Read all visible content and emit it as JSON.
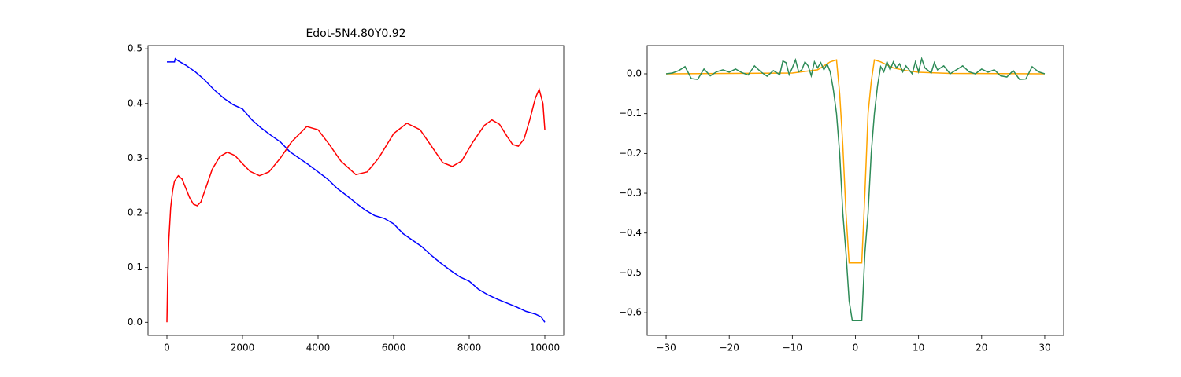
{
  "chart_data": [
    {
      "type": "line",
      "title": "Edot-5N4.80Y0.92",
      "xlim": [
        -500,
        10500
      ],
      "ylim": [
        -0.024,
        0.506
      ],
      "xticks": [
        0,
        2000,
        4000,
        6000,
        8000,
        10000
      ],
      "yticks": [
        {
          "value": 0,
          "label": "0.0"
        },
        0.1,
        0.2,
        0.3,
        0.4,
        0.5
      ],
      "series": [
        {
          "color": "#0000ff",
          "x": [
            0,
            200,
            220,
            300,
            500,
            750,
            1000,
            1250,
            1500,
            1750,
            2000,
            2250,
            2500,
            2750,
            3000,
            3250,
            3500,
            3750,
            4000,
            4250,
            4500,
            4750,
            5000,
            5250,
            5500,
            5750,
            6000,
            6250,
            6500,
            6750,
            7000,
            7250,
            7500,
            7750,
            8000,
            8250,
            8500,
            8750,
            9000,
            9250,
            9500,
            9750,
            9900,
            10000
          ],
          "values": [
            0.476,
            0.476,
            0.482,
            0.478,
            0.47,
            0.458,
            0.443,
            0.425,
            0.41,
            0.398,
            0.39,
            0.37,
            0.355,
            0.342,
            0.33,
            0.312,
            0.3,
            0.288,
            0.275,
            0.262,
            0.245,
            0.232,
            0.218,
            0.205,
            0.195,
            0.19,
            0.18,
            0.162,
            0.15,
            0.138,
            0.122,
            0.108,
            0.095,
            0.083,
            0.075,
            0.06,
            0.05,
            0.042,
            0.035,
            0.028,
            0.02,
            0.015,
            0.01,
            0.0
          ]
        },
        {
          "color": "#ff0000",
          "x": [
            0,
            20,
            50,
            100,
            150,
            200,
            300,
            400,
            500,
            600,
            700,
            800,
            900,
            1000,
            1200,
            1400,
            1600,
            1800,
            2000,
            2200,
            2450,
            2700,
            3000,
            3300,
            3700,
            4000,
            4300,
            4600,
            5000,
            5300,
            5600,
            6000,
            6350,
            6700,
            7000,
            7300,
            7550,
            7800,
            8100,
            8400,
            8600,
            8800,
            9000,
            9150,
            9300,
            9450,
            9600,
            9750,
            9850,
            9950,
            10000
          ],
          "values": [
            0,
            0.08,
            0.15,
            0.21,
            0.24,
            0.258,
            0.268,
            0.262,
            0.245,
            0.228,
            0.216,
            0.213,
            0.22,
            0.24,
            0.28,
            0.303,
            0.311,
            0.305,
            0.29,
            0.276,
            0.268,
            0.275,
            0.3,
            0.33,
            0.358,
            0.352,
            0.325,
            0.295,
            0.27,
            0.275,
            0.3,
            0.345,
            0.364,
            0.352,
            0.322,
            0.292,
            0.285,
            0.295,
            0.33,
            0.36,
            0.37,
            0.362,
            0.34,
            0.325,
            0.322,
            0.335,
            0.37,
            0.41,
            0.426,
            0.4,
            0.352
          ]
        }
      ]
    },
    {
      "type": "line",
      "xlim": [
        -33,
        33
      ],
      "ylim": [
        -0.657,
        0.071
      ],
      "xticks": [
        {
          "value": -30,
          "label": "−30"
        },
        {
          "value": -20,
          "label": "−20"
        },
        {
          "value": -10,
          "label": "−10"
        },
        0,
        10,
        20,
        30
      ],
      "yticks": [
        {
          "value": 0,
          "label": "0.0"
        },
        {
          "value": -0.1,
          "label": "−0.1"
        },
        {
          "value": -0.2,
          "label": "−0.2"
        },
        {
          "value": -0.3,
          "label": "−0.3"
        },
        {
          "value": -0.4,
          "label": "−0.4"
        },
        {
          "value": -0.5,
          "label": "−0.5"
        },
        {
          "value": -0.6,
          "label": "−0.6"
        }
      ],
      "series": [
        {
          "color": "#ffa500",
          "x": [
            -30,
            -10,
            -6,
            -5,
            -4,
            -3,
            -2.5,
            -2,
            -1.5,
            -1,
            1,
            1.5,
            2,
            2.5,
            3,
            4,
            6,
            8,
            10,
            15,
            30
          ],
          "values": [
            0,
            0.002,
            0.01,
            0.02,
            0.03,
            0.035,
            -0.05,
            -0.18,
            -0.35,
            -0.475,
            -0.475,
            -0.3,
            -0.1,
            -0.02,
            0.035,
            0.03,
            0.015,
            0.008,
            0.004,
            0.001,
            0
          ]
        },
        {
          "color": "#2e8b57",
          "x": [
            -30,
            -29,
            -28,
            -27,
            -26,
            -25,
            -24,
            -23,
            -22,
            -21,
            -20,
            -19,
            -18,
            -17,
            -16,
            -15,
            -14,
            -13,
            -12,
            -11.5,
            -11,
            -10.5,
            -10,
            -9.5,
            -9,
            -8.5,
            -8,
            -7.5,
            -7,
            -6.5,
            -6,
            -5.5,
            -5,
            -4.5,
            -4,
            -3.5,
            -3,
            -2.5,
            -2,
            -1.5,
            -1,
            -0.5,
            0.5,
            1,
            1.5,
            2,
            2.5,
            3,
            3.5,
            4,
            4.5,
            5,
            5.5,
            6,
            6.5,
            7,
            7.5,
            8,
            8.5,
            9,
            9.5,
            10,
            10.5,
            11,
            12,
            12.5,
            13,
            14,
            15,
            16,
            17,
            18,
            19,
            20,
            21,
            22,
            23,
            24,
            25,
            26,
            27,
            28,
            29,
            30
          ],
          "values": [
            0,
            0.002,
            0.008,
            0.018,
            -0.012,
            -0.014,
            0.012,
            -0.005,
            0.005,
            0.01,
            0.004,
            0.012,
            0.003,
            -0.003,
            0.02,
            0.005,
            -0.006,
            0.008,
            -0.002,
            0.032,
            0.028,
            -0.002,
            0.015,
            0.035,
            0.005,
            0.01,
            0.03,
            0.02,
            -0.005,
            0.03,
            0.015,
            0.028,
            0.01,
            0.025,
            0.005,
            -0.04,
            -0.1,
            -0.2,
            -0.35,
            -0.45,
            -0.57,
            -0.62,
            -0.62,
            -0.62,
            -0.45,
            -0.35,
            -0.2,
            -0.1,
            -0.03,
            0.018,
            0.005,
            0.03,
            0.01,
            0.03,
            0.015,
            0.025,
            0.005,
            0.02,
            0.01,
            0,
            0.03,
            0.005,
            0.038,
            0.015,
            0.002,
            0.028,
            0.01,
            0.02,
            0,
            0.01,
            0.02,
            0.005,
            0,
            0.012,
            0.004,
            0.01,
            -0.005,
            -0.008,
            0.008,
            -0.014,
            -0.013,
            0.018,
            0.005,
            0
          ]
        }
      ]
    }
  ]
}
